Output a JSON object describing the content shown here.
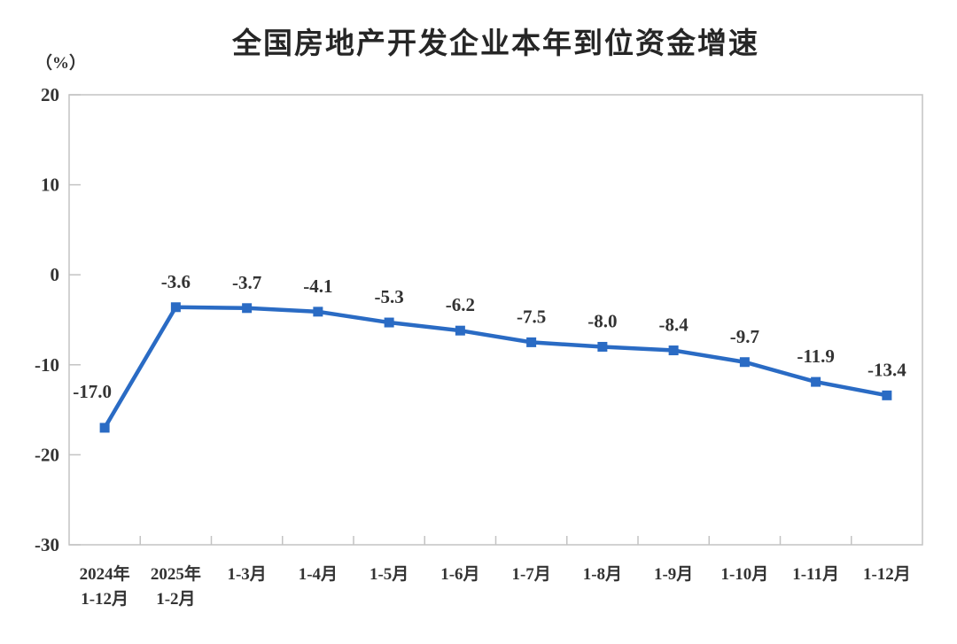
{
  "chart_data": {
    "type": "line",
    "title": "全国房地产开发企业本年到位资金增速",
    "unit_label": "（%）",
    "categories": [
      "2024年\n1-12月",
      "2025年\n1-2月",
      "1-3月",
      "1-4月",
      "1-5月",
      "1-6月",
      "1-7月",
      "1-8月",
      "1-9月",
      "1-10月",
      "1-11月",
      "1-12月"
    ],
    "series": [
      {
        "name": "本年到位资金增速",
        "values": [
          -17.0,
          -3.6,
          -3.7,
          -4.1,
          -5.3,
          -6.2,
          -7.5,
          -8.0,
          -8.4,
          -9.7,
          -11.9,
          -13.4
        ],
        "point_labels": [
          "-17.0",
          "-3.6",
          "-3.7",
          "-4.1",
          "-5.3",
          "-6.2",
          "-7.5",
          "-8.0",
          "-8.4",
          "-9.7",
          "-11.9",
          "-13.4"
        ]
      }
    ],
    "xlabel": "",
    "ylabel": "（%）",
    "ylim": [
      -30,
      20
    ],
    "yticks": [
      20,
      10,
      0,
      -10,
      -20,
      -30
    ],
    "grid": "off",
    "legend": "none",
    "marker": "square",
    "colors": {
      "line": "#2A6BC4",
      "marker": "#2A6BC4",
      "frame": "#C3C3C3",
      "text": "#333333"
    }
  }
}
